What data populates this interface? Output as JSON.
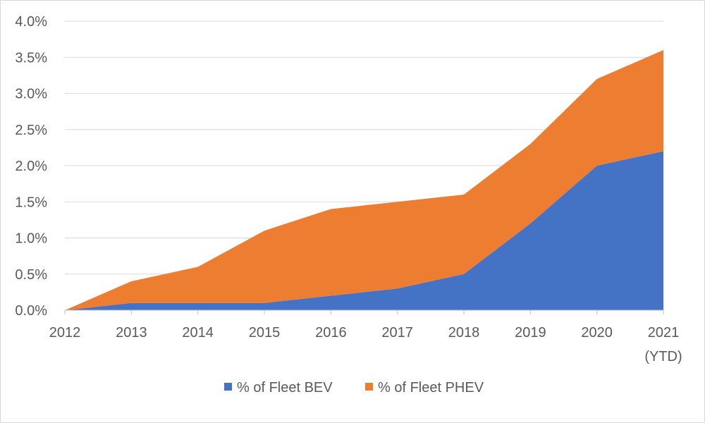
{
  "chart_data": {
    "type": "area",
    "stacked": true,
    "title": "",
    "xlabel": "",
    "ylabel": "",
    "categories": [
      "2012",
      "2013",
      "2014",
      "2015",
      "2016",
      "2017",
      "2018",
      "2019",
      "2020",
      "2021"
    ],
    "category_sublabels": [
      "",
      "",
      "",
      "",
      "",
      "",
      "",
      "",
      "",
      "(YTD)"
    ],
    "ylim": [
      0,
      4.0
    ],
    "ytick_values": [
      0,
      0.5,
      1.0,
      1.5,
      2.0,
      2.5,
      3.0,
      3.5,
      4.0
    ],
    "ytick_labels": [
      "0.0%",
      "0.5%",
      "1.0%",
      "1.5%",
      "2.0%",
      "2.5%",
      "3.0%",
      "3.5%",
      "4.0%"
    ],
    "grid": true,
    "legend_position": "bottom-center",
    "series": [
      {
        "name": "% of Fleet BEV",
        "color": "#4472c4",
        "values": [
          0.0,
          0.1,
          0.1,
          0.1,
          0.2,
          0.3,
          0.5,
          1.2,
          2.0,
          2.2
        ]
      },
      {
        "name": "% of Fleet PHEV",
        "color": "#ed7d31",
        "values": [
          0.0,
          0.3,
          0.5,
          1.0,
          1.2,
          1.2,
          1.1,
          1.1,
          1.2,
          1.4
        ]
      }
    ]
  }
}
